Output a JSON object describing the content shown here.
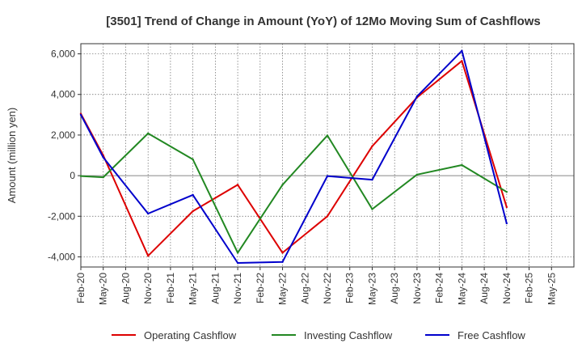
{
  "chart_data": {
    "type": "line",
    "title": "[3501]  Trend of Change in Amount (YoY) of 12Mo Moving Sum of Cashflows",
    "xlabel": "",
    "ylabel": "Amount (million yen)",
    "categories": [
      "Feb-20",
      "May-20",
      "Aug-20",
      "Nov-20",
      "Feb-21",
      "May-21",
      "Aug-21",
      "Nov-21",
      "Feb-22",
      "May-22",
      "Aug-22",
      "Nov-22",
      "Feb-23",
      "May-23",
      "Aug-23",
      "Nov-23",
      "Feb-24",
      "May-24",
      "Aug-24",
      "Nov-24",
      "Feb-25",
      "May-25"
    ],
    "ylim": [
      -4500,
      6500
    ],
    "yticks": [
      -4000,
      -2000,
      0,
      2000,
      4000,
      6000
    ],
    "ytick_labels": [
      "-4,000",
      "-2,000",
      "0",
      "2,000",
      "4,000",
      "6,000"
    ],
    "grid": true,
    "legend_position": "bottom",
    "series": [
      {
        "name": "Operating Cashflow",
        "color": "#dd0000",
        "values": [
          3050,
          1000,
          null,
          -3950,
          null,
          -1750,
          null,
          -450,
          null,
          -3800,
          null,
          -2000,
          null,
          1450,
          null,
          3850,
          null,
          5650,
          null,
          -1550,
          null,
          null
        ]
      },
      {
        "name": "Investing Cashflow",
        "color": "#228822",
        "values": [
          -20,
          -80,
          null,
          2080,
          null,
          800,
          null,
          -3800,
          null,
          -450,
          null,
          1980,
          null,
          -1650,
          null,
          50,
          null,
          520,
          null,
          -800,
          null,
          null
        ]
      },
      {
        "name": "Free Cashflow",
        "color": "#0000cc",
        "values": [
          3000,
          900,
          null,
          -1870,
          null,
          -950,
          null,
          -4300,
          null,
          -4250,
          null,
          -20,
          null,
          -200,
          null,
          3900,
          null,
          6150,
          null,
          -2350,
          null,
          null
        ]
      }
    ]
  }
}
